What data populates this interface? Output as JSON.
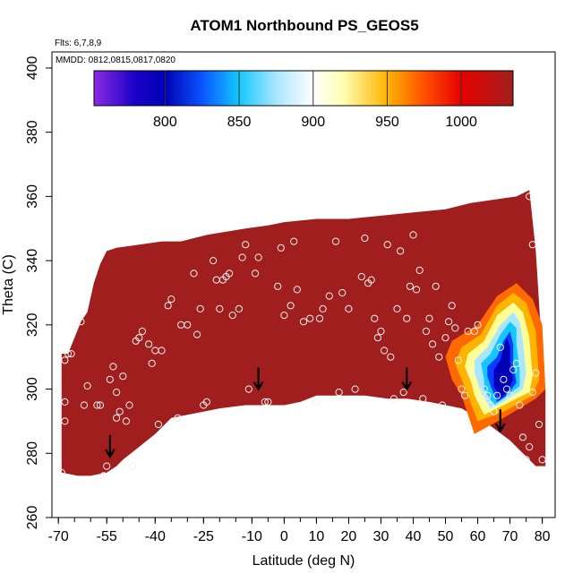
{
  "chart_data": {
    "type": "heatmap",
    "title": "ATOM1 Northbound PS_GEOS5",
    "annotations": {
      "flights": "Flts: 6,7,8,9",
      "dates": "MMDD: 0812,0815,0817,0820"
    },
    "xlabel": "Latitude (deg N)",
    "ylabel": "Theta (C)",
    "xlim": [
      -72,
      84
    ],
    "ylim": [
      260,
      405
    ],
    "x_ticks": [
      -70,
      -55,
      -40,
      -25,
      -10,
      0,
      10,
      20,
      30,
      40,
      50,
      60,
      70,
      80
    ],
    "x_tick_labels": [
      "-70",
      "-55",
      "-40",
      "-25",
      "-10",
      "0",
      "10",
      "20",
      "30",
      "40",
      "50",
      "60",
      "70",
      "80"
    ],
    "y_ticks": [
      260,
      280,
      300,
      320,
      340,
      360,
      380,
      400
    ],
    "y_tick_labels": [
      "260",
      "280",
      "300",
      "320",
      "340",
      "360",
      "380",
      "400"
    ],
    "colorbar": {
      "ticks": [
        800,
        850,
        900,
        950,
        1000
      ],
      "tick_labels": [
        "800",
        "850",
        "900",
        "950",
        "1000"
      ],
      "range": [
        752,
        1035
      ],
      "stops": [
        {
          "value": 752,
          "color": "#8a2be2"
        },
        {
          "value": 780,
          "color": "#1a00c8"
        },
        {
          "value": 800,
          "color": "#0000b4"
        },
        {
          "value": 825,
          "color": "#0a55ff"
        },
        {
          "value": 850,
          "color": "#14c8ff"
        },
        {
          "value": 875,
          "color": "#aae6ff"
        },
        {
          "value": 900,
          "color": "#ffffff"
        },
        {
          "value": 920,
          "color": "#ffffb4"
        },
        {
          "value": 950,
          "color": "#ffb400"
        },
        {
          "value": 975,
          "color": "#ff5000"
        },
        {
          "value": 1000,
          "color": "#e60000"
        },
        {
          "value": 1035,
          "color": "#a01e1e"
        }
      ]
    },
    "field_value": 1004,
    "domain_outline": [
      [
        -69,
        274
      ],
      [
        -69,
        311
      ],
      [
        -67,
        311
      ],
      [
        -65,
        316
      ],
      [
        -63,
        321
      ],
      [
        -61,
        324
      ],
      [
        -59,
        333
      ],
      [
        -57,
        339
      ],
      [
        -55,
        343
      ],
      [
        -52,
        344
      ],
      [
        -45,
        345
      ],
      [
        -38,
        346
      ],
      [
        -32,
        346
      ],
      [
        -28,
        347
      ],
      [
        -24,
        348
      ],
      [
        -18,
        349
      ],
      [
        -12,
        350
      ],
      [
        -5,
        351
      ],
      [
        0,
        352
      ],
      [
        10,
        353
      ],
      [
        20,
        353
      ],
      [
        30,
        354
      ],
      [
        40,
        355
      ],
      [
        50,
        356
      ],
      [
        58,
        358
      ],
      [
        65,
        359
      ],
      [
        72,
        360
      ],
      [
        76,
        362
      ],
      [
        78,
        343
      ],
      [
        79,
        327
      ],
      [
        80,
        310
      ],
      [
        81,
        300
      ],
      [
        81,
        276
      ],
      [
        78,
        276
      ],
      [
        70,
        284
      ],
      [
        62,
        290
      ],
      [
        55,
        294
      ],
      [
        45,
        296
      ],
      [
        38,
        297
      ],
      [
        32,
        297
      ],
      [
        25,
        298
      ],
      [
        20,
        298
      ],
      [
        10,
        298
      ],
      [
        5,
        296
      ],
      [
        0,
        295
      ],
      [
        -5,
        295
      ],
      [
        -12,
        295
      ],
      [
        -20,
        294
      ],
      [
        -25,
        293
      ],
      [
        -30,
        292
      ],
      [
        -35,
        291
      ],
      [
        -40,
        286
      ],
      [
        -45,
        282
      ],
      [
        -50,
        278
      ],
      [
        -52,
        276
      ],
      [
        -55,
        274
      ],
      [
        -60,
        273
      ],
      [
        -64,
        273
      ]
    ],
    "anomaly": {
      "zones": [
        {
          "value": 1000,
          "color": "#ff6a00",
          "outline": [
            [
              55,
              298
            ],
            [
              59,
              286
            ],
            [
              68,
              291
            ],
            [
              78,
              297
            ],
            [
              81,
              300
            ],
            [
              80,
              320
            ],
            [
              77,
              328
            ],
            [
              72,
              333
            ],
            [
              66,
              329
            ],
            [
              60,
              320
            ],
            [
              52,
              315
            ],
            [
              50,
              310
            ],
            [
              52,
              303
            ]
          ]
        },
        {
          "value": 950,
          "color": "#ffb400",
          "outline": [
            [
              57,
              298
            ],
            [
              60,
              290
            ],
            [
              68,
              293
            ],
            [
              77,
              298
            ],
            [
              79,
              303
            ],
            [
              78,
              318
            ],
            [
              75,
              327
            ],
            [
              71,
              330
            ],
            [
              66,
              326
            ],
            [
              61,
              317
            ],
            [
              55,
              313
            ],
            [
              53,
              308
            ],
            [
              55,
              303
            ]
          ]
        },
        {
          "value": 925,
          "color": "#ffff9a",
          "outline": [
            [
              59,
              298
            ],
            [
              62,
              292
            ],
            [
              68,
              295
            ],
            [
              76,
              299
            ],
            [
              77,
              304
            ],
            [
              76,
              316
            ],
            [
              74,
              324
            ],
            [
              71,
              327
            ],
            [
              66,
              323
            ],
            [
              62,
              315
            ],
            [
              57,
              311
            ],
            [
              56,
              307
            ],
            [
              58,
              302
            ]
          ]
        },
        {
          "value": 875,
          "color": "#aae6ff",
          "outline": [
            [
              61,
              299
            ],
            [
              64,
              294
            ],
            [
              68,
              296
            ],
            [
              74,
              300
            ],
            [
              75,
              305
            ],
            [
              74,
              315
            ],
            [
              73,
              321
            ],
            [
              71,
              324
            ],
            [
              67,
              320
            ],
            [
              63,
              313
            ],
            [
              59,
              309
            ],
            [
              59,
              305
            ],
            [
              60,
              302
            ]
          ]
        },
        {
          "value": 850,
          "color": "#14c8ff",
          "outline": [
            [
              62,
              300
            ],
            [
              65,
              295
            ],
            [
              68,
              297
            ],
            [
              73,
              301
            ],
            [
              73,
              306
            ],
            [
              72,
              314
            ],
            [
              72,
              319
            ],
            [
              70,
              321
            ],
            [
              67,
              317
            ],
            [
              64,
              311
            ],
            [
              61,
              308
            ],
            [
              62,
              303
            ]
          ]
        },
        {
          "value": 815,
          "color": "#0a3cff",
          "outline": [
            [
              64,
              301
            ],
            [
              66,
              296
            ],
            [
              69,
              298
            ],
            [
              72,
              302
            ],
            [
              71,
              308
            ],
            [
              71,
              314
            ],
            [
              70,
              318
            ],
            [
              68,
              315
            ],
            [
              66,
              310
            ],
            [
              63,
              307
            ],
            [
              63,
              304
            ]
          ]
        },
        {
          "value": 800,
          "color": "#0000b4",
          "outline": [
            [
              65,
              301
            ],
            [
              67,
              297
            ],
            [
              69,
              299
            ],
            [
              71,
              303
            ],
            [
              70,
              308
            ],
            [
              70,
              313
            ],
            [
              69,
              316
            ],
            [
              68,
              313
            ],
            [
              67,
              309
            ],
            [
              65,
              306
            ]
          ]
        }
      ]
    },
    "points": [
      [
        -69,
        274
      ],
      [
        -68,
        290
      ],
      [
        -68,
        296
      ],
      [
        -68,
        309
      ],
      [
        -67,
        311
      ],
      [
        -66,
        311
      ],
      [
        -63,
        321
      ],
      [
        -62,
        295
      ],
      [
        -61,
        301
      ],
      [
        -58,
        295
      ],
      [
        -57,
        295
      ],
      [
        -56,
        273
      ],
      [
        -55,
        276
      ],
      [
        -54,
        303
      ],
      [
        -53,
        307
      ],
      [
        -52,
        299
      ],
      [
        -52,
        291
      ],
      [
        -51,
        293
      ],
      [
        -50,
        304
      ],
      [
        -49,
        290
      ],
      [
        -48,
        295
      ],
      [
        -47,
        276
      ],
      [
        -46,
        315
      ],
      [
        -45,
        316
      ],
      [
        -44,
        318
      ],
      [
        -42,
        314
      ],
      [
        -41,
        308
      ],
      [
        -40,
        312
      ],
      [
        -39,
        289
      ],
      [
        -38,
        312
      ],
      [
        -36,
        326
      ],
      [
        -35,
        328
      ],
      [
        -33,
        291
      ],
      [
        -32,
        320
      ],
      [
        -30,
        320
      ],
      [
        -28,
        336
      ],
      [
        -27,
        317
      ],
      [
        -26,
        325
      ],
      [
        -25,
        295
      ],
      [
        -24,
        296
      ],
      [
        -22,
        340
      ],
      [
        -21,
        334
      ],
      [
        -20,
        325
      ],
      [
        -19,
        334
      ],
      [
        -18,
        335
      ],
      [
        -17,
        336
      ],
      [
        -16,
        323
      ],
      [
        -14,
        325
      ],
      [
        -13,
        341
      ],
      [
        -12,
        345
      ],
      [
        -11,
        300
      ],
      [
        -9,
        336
      ],
      [
        -8,
        341
      ],
      [
        -6,
        296
      ],
      [
        -5,
        296
      ],
      [
        -2,
        332
      ],
      [
        -1,
        344
      ],
      [
        0,
        323
      ],
      [
        2,
        326
      ],
      [
        3,
        346
      ],
      [
        4,
        331
      ],
      [
        6,
        321
      ],
      [
        8,
        322
      ],
      [
        10,
        296
      ],
      [
        11,
        322
      ],
      [
        12,
        325
      ],
      [
        14,
        329
      ],
      [
        16,
        346
      ],
      [
        17,
        299
      ],
      [
        18,
        330
      ],
      [
        20,
        325
      ],
      [
        22,
        300
      ],
      [
        24,
        335
      ],
      [
        25,
        347
      ],
      [
        26,
        333
      ],
      [
        27,
        334
      ],
      [
        28,
        322
      ],
      [
        29,
        316
      ],
      [
        30,
        318
      ],
      [
        31,
        312
      ],
      [
        32,
        345
      ],
      [
        33,
        310
      ],
      [
        34,
        297
      ],
      [
        35,
        325
      ],
      [
        36,
        343
      ],
      [
        37,
        299
      ],
      [
        38,
        322
      ],
      [
        39,
        332
      ],
      [
        40,
        348
      ],
      [
        41,
        331
      ],
      [
        42,
        337
      ],
      [
        43,
        297
      ],
      [
        44,
        318
      ],
      [
        45,
        322
      ],
      [
        46,
        314
      ],
      [
        47,
        332
      ],
      [
        48,
        310
      ],
      [
        49,
        295
      ],
      [
        50,
        316
      ],
      [
        51,
        321
      ],
      [
        52,
        326
      ],
      [
        53,
        319
      ],
      [
        54,
        309
      ],
      [
        55,
        300
      ],
      [
        56,
        298
      ],
      [
        57,
        318
      ],
      [
        58,
        305
      ],
      [
        59,
        318
      ],
      [
        60,
        320
      ],
      [
        61,
        297
      ],
      [
        62,
        300
      ],
      [
        63,
        298
      ],
      [
        64,
        295
      ],
      [
        65,
        293
      ],
      [
        66,
        298
      ],
      [
        67,
        313
      ],
      [
        68,
        303
      ],
      [
        69,
        300
      ],
      [
        70,
        298
      ],
      [
        71,
        306
      ],
      [
        72,
        308
      ],
      [
        73,
        295
      ],
      [
        74,
        285
      ],
      [
        75,
        278
      ],
      [
        76,
        282
      ],
      [
        77,
        299
      ],
      [
        78,
        305
      ],
      [
        79,
        289
      ],
      [
        80,
        278
      ],
      [
        76,
        360
      ],
      [
        77,
        345
      ]
    ],
    "arrows": [
      [
        -54,
        279
      ],
      [
        -8,
        300
      ],
      [
        38,
        300
      ],
      [
        67,
        287
      ]
    ]
  }
}
